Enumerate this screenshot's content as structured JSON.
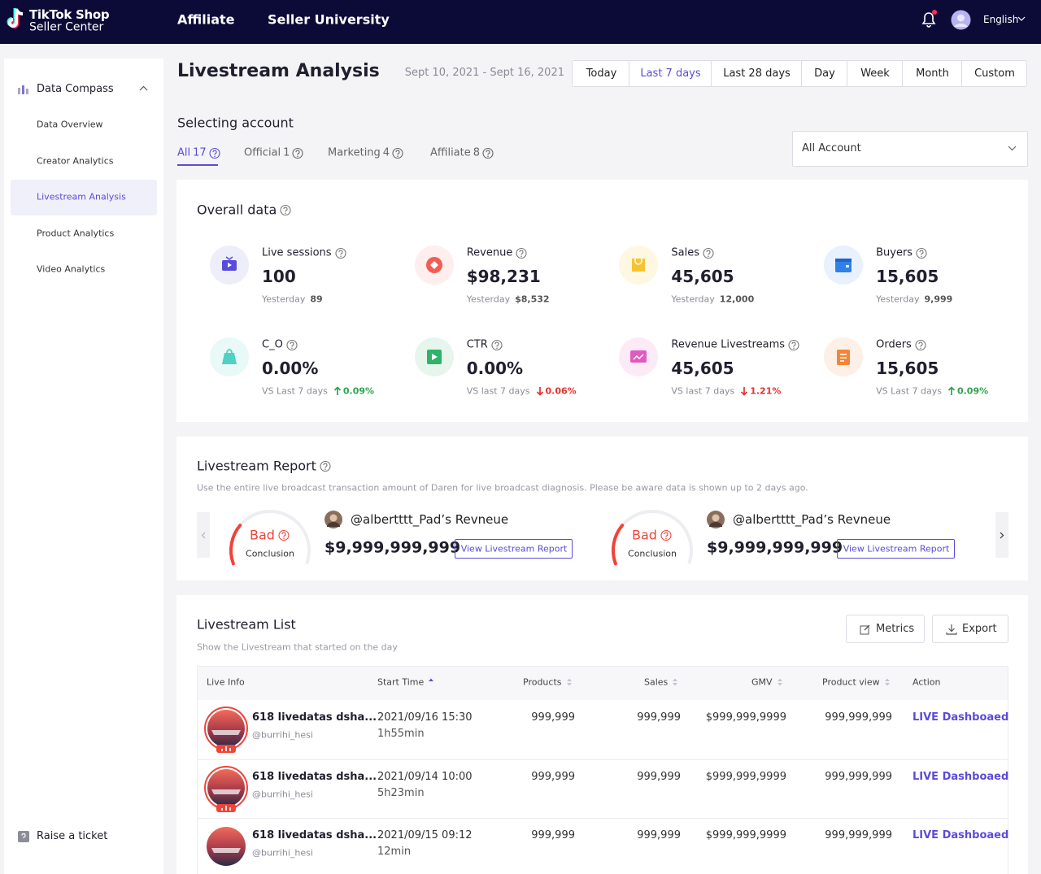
{
  "header": {
    "logo_line1": "TikTok Shop",
    "logo_line2": "Seller Center",
    "nav": [
      "Affiliate",
      "Seller University"
    ],
    "language": "English"
  },
  "sidebar": {
    "section": "Data Compass",
    "items": [
      "Data Overview",
      "Creator Analytics",
      "Livestream Analysis",
      "Product Analytics",
      "Video Analytics"
    ],
    "footer": "Raise a ticket"
  },
  "page": {
    "title": "Livestream Analysis",
    "date_range": "Sept 10, 2021 - Sept 16, 2021",
    "ranges": [
      "Today",
      "Last 7 days",
      "Last 28 days",
      "Day",
      "Week",
      "Month",
      "Custom"
    ]
  },
  "account": {
    "title": "Selecting account",
    "tabs": [
      {
        "label": "All",
        "count": 17
      },
      {
        "label": "Official",
        "count": 1
      },
      {
        "label": "Marketing",
        "count": 4
      },
      {
        "label": "Affiliate",
        "count": 8
      }
    ],
    "dropdown": "All Account"
  },
  "overall": {
    "title": "Overall data",
    "metrics": [
      {
        "name": "Live sessions",
        "value": "100",
        "compare_label": "Yesterday",
        "compare_value": "89"
      },
      {
        "name": "Revenue",
        "value": "$98,231",
        "compare_label": "Yesterday",
        "compare_value": "$8,532"
      },
      {
        "name": "Sales",
        "value": "45,605",
        "compare_label": "Yesterday",
        "compare_value": "12,000"
      },
      {
        "name": "Buyers",
        "value": "15,605",
        "compare_label": "Yesterday",
        "compare_value": "9,999"
      },
      {
        "name": "C_O",
        "value": "0.00%",
        "compare_label": "VS Last 7 days",
        "compare_value": "0.09%",
        "trend": "up"
      },
      {
        "name": "CTR",
        "value": "0.00%",
        "compare_label": "VS last 7 days",
        "compare_value": "0.06%",
        "trend": "down"
      },
      {
        "name": "Revenue Livestreams",
        "value": "45,605",
        "compare_label": "VS last 7 days",
        "compare_value": "1.21%",
        "trend": "down"
      },
      {
        "name": "Orders",
        "value": "15,605",
        "compare_label": "VS Last 7 days",
        "compare_value": "0.09%",
        "trend": "up"
      }
    ]
  },
  "report": {
    "title": "Livestream Report",
    "description": "Use the entire live broadcast transaction amount of Daren for live broadcast diagnosis. Please be aware data is shown up to 2 days ago.",
    "cards": [
      {
        "status": "Bad",
        "conclusion": "Conclusion",
        "name": "@albertttt_Pad’s Revneue",
        "amount": "$9,999,999,999",
        "button": "View Livestream Report"
      },
      {
        "status": "Bad",
        "conclusion": "Conclusion",
        "name": "@albertttt_Pad’s Revneue",
        "amount": "$9,999,999,999",
        "button": "View Livestream Report"
      }
    ]
  },
  "list": {
    "title": "Livestream List",
    "subtitle": "Show the Livestream that started on the day",
    "buttons": [
      "Metrics",
      "Export"
    ],
    "columns": [
      "Live Info",
      "Start Time",
      "Products",
      "Sales",
      "GMV",
      "Product view",
      "Action"
    ],
    "rows": [
      {
        "title": "618 livedatas dsha...",
        "handle": "@burrihi_hesi",
        "start": "2021/09/16 15:30",
        "duration": "1h55min",
        "products": "999,999",
        "sales": "999,999",
        "gmv": "$999,999,9999",
        "views": "999,999,999",
        "action": "LIVE Dashboaed"
      },
      {
        "title": "618 livedatas dsha...",
        "handle": "@burrihi_hesi",
        "start": "2021/09/14 10:00",
        "duration": "5h23min",
        "products": "999,999",
        "sales": "999,999",
        "gmv": "$999,999,9999",
        "views": "999,999,999",
        "action": "LIVE Dashboaed"
      },
      {
        "title": "618 livedatas dsha...",
        "handle": "@burrihi_hesi",
        "start": "2021/09/15 09:12",
        "duration": "12min",
        "products": "999,999",
        "sales": "999,999",
        "gmv": "$999,999,9999",
        "views": "999,999,999",
        "action": "LIVE Dashboaed"
      }
    ]
  }
}
